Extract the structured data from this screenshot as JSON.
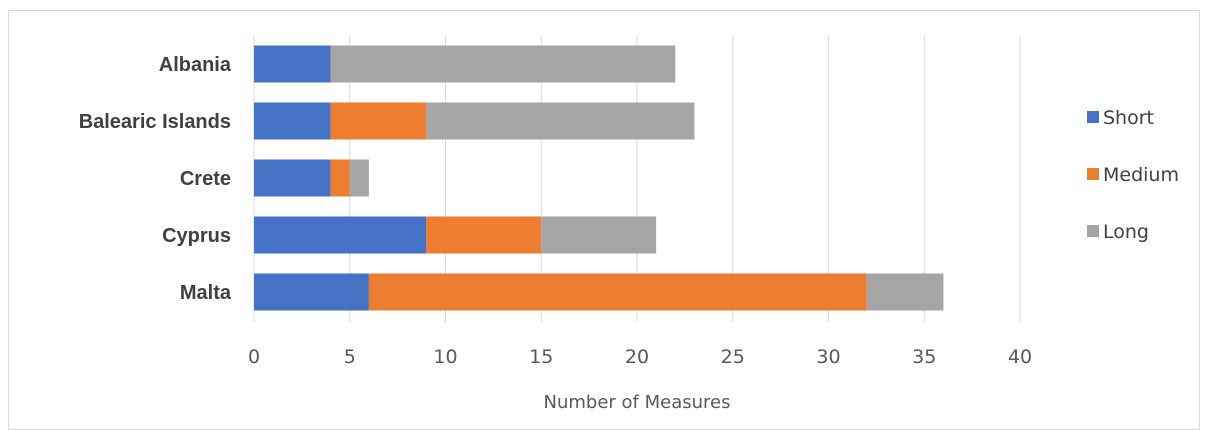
{
  "chart_data": {
    "type": "bar",
    "orientation": "horizontal",
    "stacked": true,
    "categories": [
      "Albania",
      "Balearic Islands",
      "Crete",
      "Cyprus",
      "Malta"
    ],
    "series": [
      {
        "name": "Short",
        "values": [
          4,
          4,
          4,
          9,
          6
        ],
        "color": "#4472C4"
      },
      {
        "name": "Medium",
        "values": [
          0,
          5,
          1,
          6,
          26
        ],
        "color": "#ED7D31"
      },
      {
        "name": "Long",
        "values": [
          18,
          14,
          1,
          6,
          4
        ],
        "color": "#A5A5A5"
      }
    ],
    "title": "",
    "xlabel": "Number of Measures",
    "ylabel": "",
    "xlim": [
      0,
      40
    ],
    "xticks": [
      0,
      5,
      10,
      15,
      20,
      25,
      30,
      35,
      40
    ],
    "grid": "vertical",
    "legend_position": "right"
  }
}
